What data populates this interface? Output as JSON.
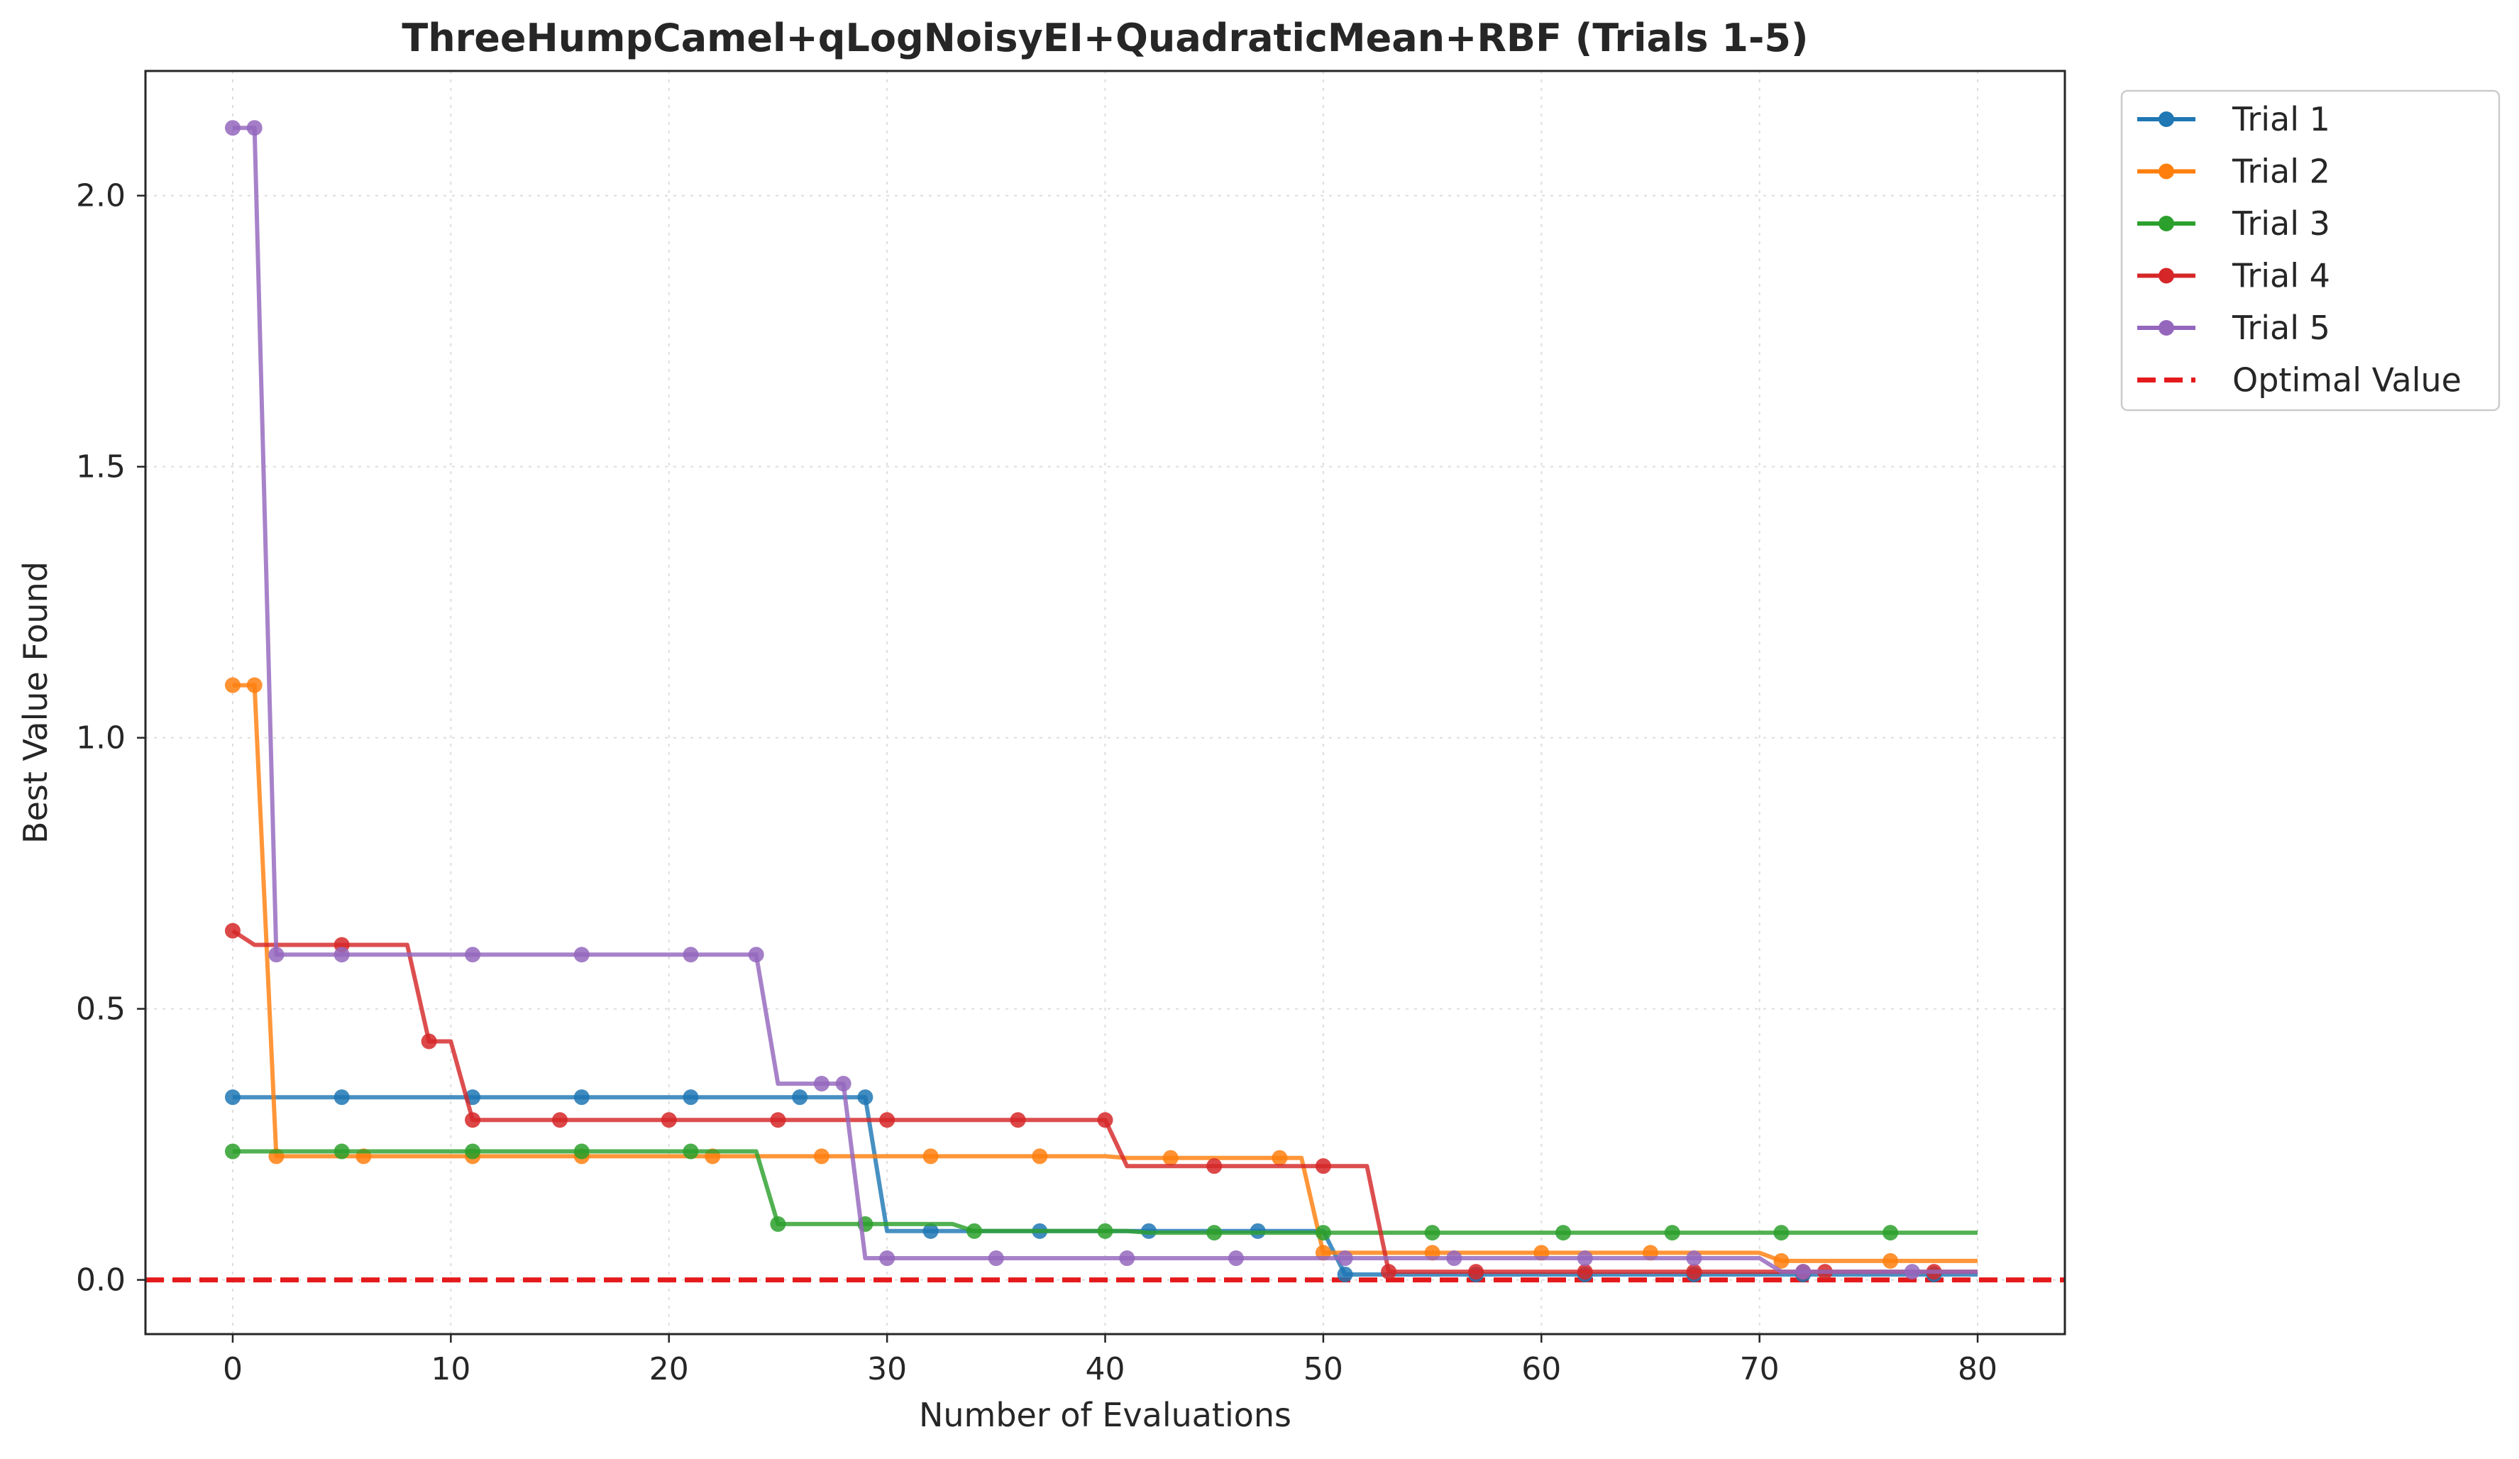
{
  "chart_data": {
    "type": "line",
    "title": "ThreeHumpCamel+qLogNoisyEI+QuadraticMean+RBF (Trials 1-5)",
    "xlabel": "Number of Evaluations",
    "ylabel": "Best Value Found",
    "xlim": [
      -4,
      84
    ],
    "ylim": [
      -0.1,
      2.23
    ],
    "xticks": [
      0,
      10,
      20,
      30,
      40,
      50,
      60,
      70,
      80
    ],
    "yticks": [
      0.0,
      0.5,
      1.0,
      1.5,
      2.0
    ],
    "xtick_labels": [
      "0",
      "10",
      "20",
      "30",
      "40",
      "50",
      "60",
      "70",
      "80"
    ],
    "ytick_labels": [
      "0.0",
      "0.5",
      "1.0",
      "1.5",
      "2.0"
    ],
    "grid": true,
    "legend_position": "outside-top-right",
    "optimal": {
      "name": "Optimal Value",
      "value": 0.0,
      "color": "#e41a1c"
    },
    "series": [
      {
        "name": "Trial 1",
        "color": "#1f77b4",
        "steps": [
          [
            0,
            0.337
          ],
          [
            29,
            0.337
          ],
          [
            30,
            0.09
          ],
          [
            50,
            0.09
          ],
          [
            51,
            0.01
          ],
          [
            80,
            0.01
          ]
        ],
        "markers": [
          0,
          5,
          11,
          16,
          21,
          26,
          29,
          32,
          37,
          42,
          47,
          51,
          57,
          62,
          67,
          72,
          78
        ]
      },
      {
        "name": "Trial 2",
        "color": "#ff7f0e",
        "steps": [
          [
            0,
            1.097
          ],
          [
            1,
            1.097
          ],
          [
            2,
            0.228
          ],
          [
            40,
            0.228
          ],
          [
            41,
            0.225
          ],
          [
            49,
            0.225
          ],
          [
            50,
            0.05
          ],
          [
            70,
            0.05
          ],
          [
            71,
            0.035
          ],
          [
            80,
            0.035
          ]
        ],
        "markers": [
          0,
          1,
          2,
          6,
          11,
          16,
          22,
          27,
          32,
          37,
          43,
          48,
          50,
          55,
          60,
          65,
          71,
          76
        ]
      },
      {
        "name": "Trial 3",
        "color": "#2ca02c",
        "steps": [
          [
            0,
            0.237
          ],
          [
            24,
            0.237
          ],
          [
            25,
            0.103
          ],
          [
            33,
            0.103
          ],
          [
            34,
            0.09
          ],
          [
            41,
            0.09
          ],
          [
            42,
            0.087
          ],
          [
            80,
            0.087
          ]
        ],
        "markers": [
          0,
          5,
          11,
          16,
          21,
          25,
          29,
          34,
          40,
          45,
          50,
          55,
          61,
          66,
          71,
          76
        ]
      },
      {
        "name": "Trial 4",
        "color": "#d62728",
        "steps": [
          [
            0,
            0.644
          ],
          [
            1,
            0.618
          ],
          [
            8,
            0.618
          ],
          [
            9,
            0.44
          ],
          [
            10,
            0.44
          ],
          [
            11,
            0.295
          ],
          [
            40,
            0.295
          ],
          [
            41,
            0.21
          ],
          [
            52,
            0.21
          ],
          [
            53,
            0.015
          ],
          [
            80,
            0.015
          ]
        ],
        "markers": [
          0,
          5,
          9,
          11,
          15,
          20,
          25,
          30,
          36,
          40,
          45,
          50,
          53,
          57,
          62,
          67,
          72,
          73,
          78
        ]
      },
      {
        "name": "Trial 5",
        "color": "#9467bd",
        "steps": [
          [
            0,
            2.125
          ],
          [
            1,
            2.125
          ],
          [
            2,
            0.6
          ],
          [
            24,
            0.6
          ],
          [
            25,
            0.362
          ],
          [
            28,
            0.362
          ],
          [
            29,
            0.04
          ],
          [
            70,
            0.04
          ],
          [
            71,
            0.015
          ],
          [
            80,
            0.015
          ]
        ],
        "markers": [
          0,
          1,
          2,
          5,
          11,
          16,
          21,
          24,
          27,
          28,
          30,
          35,
          41,
          46,
          51,
          56,
          62,
          67,
          72,
          77
        ]
      }
    ]
  }
}
